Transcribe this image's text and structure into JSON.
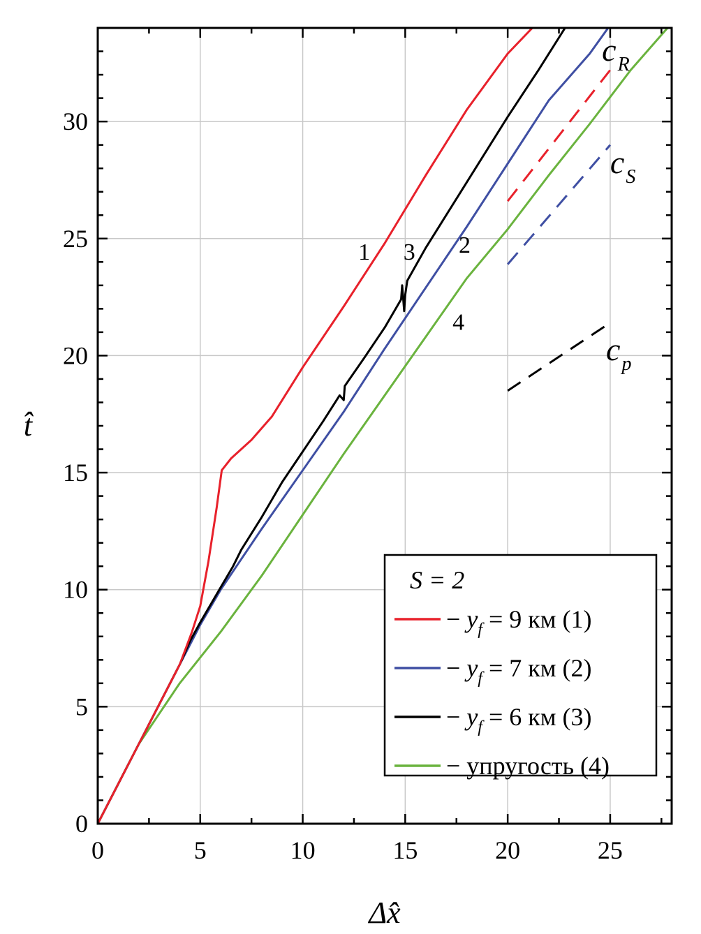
{
  "chart_data": {
    "type": "line",
    "title": "",
    "xlabel": "Δx̂",
    "ylabel": "t̂",
    "xlim": [
      0,
      28
    ],
    "ylim": [
      0,
      34
    ],
    "xticks": [
      0,
      5,
      10,
      15,
      20,
      25
    ],
    "yticks": [
      0,
      5,
      10,
      15,
      20,
      25,
      30
    ],
    "grid": true,
    "legend_placement": "bottom-right",
    "legend": {
      "title": "S = 2",
      "entries": [
        {
          "series": 0,
          "text": "− y_f = 9 км (1)"
        },
        {
          "series": 1,
          "text": "− y_f = 7 км (2)"
        },
        {
          "series": 2,
          "text": "− y_f = 6 км (3)"
        },
        {
          "series": 3,
          "text": "− упругость (4)"
        }
      ]
    },
    "series": [
      {
        "label": "1",
        "color": "#e8212b",
        "x": [
          0,
          2,
          4,
          4.6,
          5.0,
          5.4,
          5.8,
          6.05,
          6.5,
          7.5,
          8.5,
          10,
          12,
          14,
          16,
          18,
          20,
          21.2
        ],
        "y": [
          0,
          3.4,
          6.8,
          8.2,
          9.3,
          11.2,
          13.5,
          15.1,
          15.6,
          16.4,
          17.4,
          19.5,
          22.1,
          24.8,
          27.7,
          30.5,
          32.9,
          34.0
        ]
      },
      {
        "label": "2",
        "color": "#3f4fa3",
        "x": [
          0,
          2,
          4,
          5,
          6,
          8,
          10,
          12,
          14,
          16,
          18,
          20,
          22,
          24,
          24.9
        ],
        "y": [
          0,
          3.4,
          6.8,
          8.5,
          10.0,
          12.6,
          15.1,
          17.6,
          20.3,
          22.9,
          25.5,
          28.2,
          30.9,
          32.9,
          34.0
        ]
      },
      {
        "label": "3",
        "color": "#000000",
        "x": [
          0,
          2,
          4,
          4.5,
          5,
          6,
          6.6,
          7,
          8,
          9,
          10,
          11,
          11.8,
          12.0,
          12.05,
          13,
          14,
          14.8,
          14.85,
          14.95,
          15.0,
          15.1,
          16,
          18,
          20,
          21.5,
          22.8
        ],
        "y": [
          0,
          3.4,
          6.8,
          7.8,
          8.6,
          10.1,
          11.0,
          11.7,
          13.1,
          14.6,
          15.9,
          17.2,
          18.3,
          18.1,
          18.7,
          19.9,
          21.2,
          22.4,
          23.0,
          21.9,
          22.6,
          23.2,
          24.6,
          27.4,
          30.2,
          32.2,
          34.0
        ]
      },
      {
        "label": "4",
        "color": "#6ab33e",
        "x": [
          0,
          2,
          4,
          6,
          8,
          10,
          12,
          14,
          16,
          18,
          20,
          22,
          24,
          26,
          27.8
        ],
        "y": [
          0,
          3.4,
          6.0,
          8.2,
          10.6,
          13.2,
          15.8,
          18.3,
          20.8,
          23.3,
          25.4,
          27.7,
          29.9,
          32.2,
          34.0
        ]
      }
    ],
    "reference_lines": [
      {
        "label": "c",
        "subscript": "R",
        "color": "#e8212b",
        "x": [
          20,
          25
        ],
        "y": [
          26.6,
          32.2
        ]
      },
      {
        "label": "c",
        "subscript": "S",
        "color": "#3f4fa3",
        "x": [
          20,
          25
        ],
        "y": [
          23.9,
          29.0
        ]
      },
      {
        "label": "c",
        "subscript": "p",
        "color": "#000000",
        "x": [
          20,
          25
        ],
        "y": [
          18.5,
          21.4
        ]
      }
    ]
  }
}
